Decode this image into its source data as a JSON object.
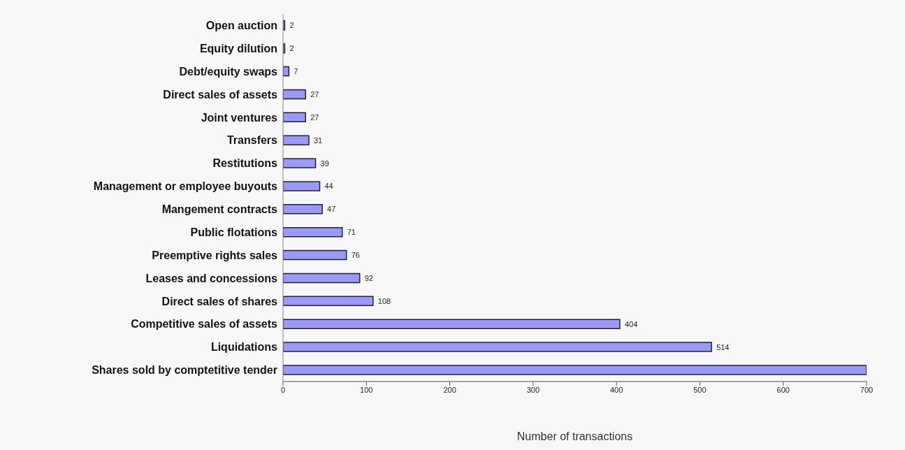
{
  "chart_data": {
    "type": "bar",
    "orientation": "horizontal",
    "xlabel": "Number of transactions",
    "categories": [
      "Open auction",
      "Equity dilution",
      "Debt/equity swaps",
      "Direct sales of assets",
      "Joint ventures",
      "Transfers",
      "Restitutions",
      "Management or employee buyouts",
      "Mangement contracts",
      "Public flotations",
      "Preemptive rights sales",
      "Leases and concessions",
      "Direct sales of shares",
      "Competitive sales of assets",
      "Liquidations",
      "Shares sold by comptetitive tender"
    ],
    "values": [
      2,
      2,
      7,
      27,
      27,
      31,
      39,
      44,
      47,
      71,
      76,
      92,
      108,
      404,
      514,
      700
    ],
    "value_labels": [
      "2",
      "2",
      "7",
      "27",
      "27",
      "31",
      "39",
      "44",
      "47",
      "71",
      "76",
      "92",
      "108",
      "404",
      "514",
      null
    ],
    "color": "#9999ff",
    "xlim": [
      0,
      700
    ],
    "xticks": [
      0,
      100,
      200,
      300,
      400,
      500,
      600,
      700
    ],
    "grid": false,
    "legend": false
  }
}
